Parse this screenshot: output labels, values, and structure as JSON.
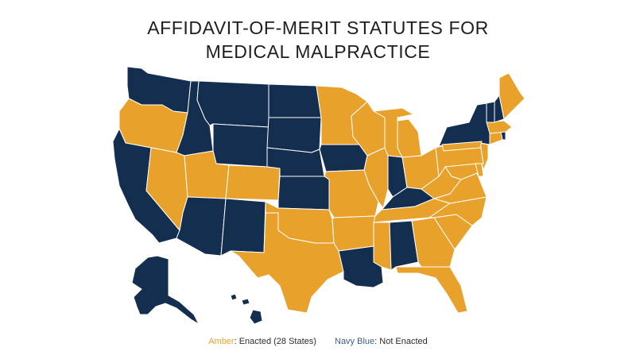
{
  "title": {
    "line1": "AFFIDAVIT-OF-MERIT STATUTES FOR",
    "line2": "MEDICAL MALPRACTICE"
  },
  "colors": {
    "enacted": "#E8A22B",
    "not_enacted": "#132E4F"
  },
  "legend": {
    "enacted_key": "Amber",
    "enacted_text": ": Enacted (28 States)",
    "not_enacted_key": "Navy Blue",
    "not_enacted_text": ": Not Enacted"
  },
  "map_data": {
    "enacted": [
      "OR",
      "NV",
      "UT",
      "CO",
      "TX",
      "OK",
      "MN",
      "WI",
      "IL",
      "MI",
      "IN_N",
      "OH",
      "PA",
      "NY_S",
      "NJ",
      "MD",
      "VA",
      "WV",
      "NC",
      "SC",
      "GA",
      "FL",
      "TN",
      "MO",
      "AR",
      "MS",
      "MA",
      "CT",
      "ME",
      "DE"
    ],
    "not_enacted": [
      "WA",
      "ID",
      "MT",
      "WY",
      "ND",
      "SD",
      "NE",
      "KS",
      "CA",
      "AZ",
      "NM",
      "IA",
      "LA",
      "AL",
      "KY",
      "IN",
      "NY",
      "VT",
      "NH",
      "RI",
      "AK",
      "HI"
    ]
  }
}
